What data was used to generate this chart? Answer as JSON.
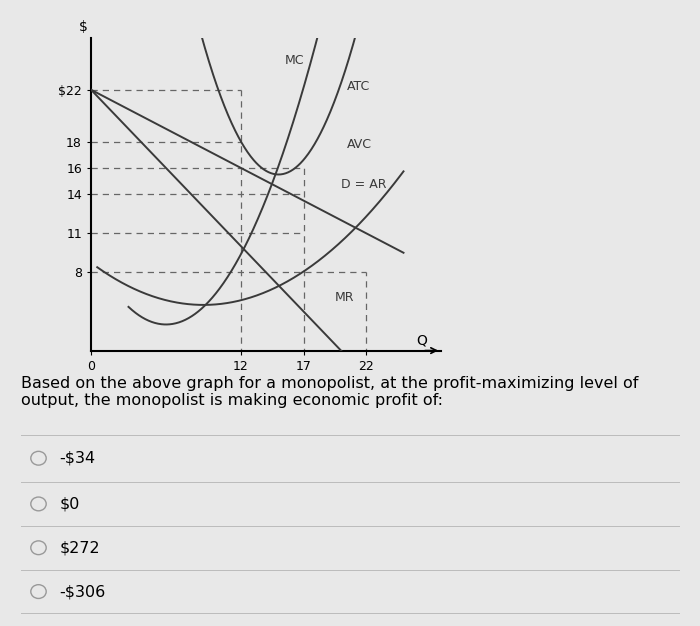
{
  "background_color": "#e8e8e8",
  "chart_bg": "#e8e8e8",
  "curve_color": "#3a3a3a",
  "dashed_color": "#666666",
  "question_text": "Based on the above graph for a monopolist, at the profit-maximizing level of\noutput, the monopolist is making economic profit of:",
  "options": [
    "-$34",
    "$0",
    "$272",
    "-$306"
  ],
  "option_fontsize": 11.5,
  "question_fontsize": 11.5,
  "radio_color": "#999999",
  "x_lim": [
    0,
    28
  ],
  "y_lim": [
    2,
    26
  ],
  "x_ticks": [
    0,
    12,
    17,
    22
  ],
  "y_ticks": [
    8,
    11,
    14,
    16,
    18,
    22
  ],
  "y_tick_labels": [
    "8",
    "11",
    "14",
    "16",
    "18",
    "$22"
  ]
}
